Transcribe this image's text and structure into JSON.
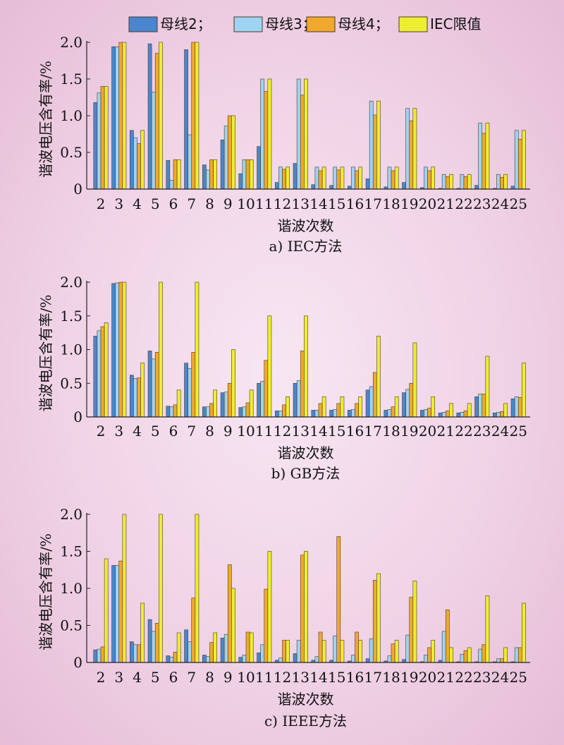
{
  "legend": [
    {
      "label": "母线2；",
      "color": "#4a86d0"
    },
    {
      "label": "母线3；",
      "color": "#9fd3f2"
    },
    {
      "label": "母线4；",
      "color": "#f0a92e"
    },
    {
      "label": "IEC限值",
      "color": "#eeee30"
    }
  ],
  "colors": {
    "bar_stroke": "#4a3a2a",
    "axis": "#222222"
  },
  "chart_data": [
    {
      "type": "bar",
      "caption": "a) IEC方法",
      "xlabel": "谐波次数",
      "ylabel": "谐波电压含有率/%",
      "ylim": [
        0,
        2.0
      ],
      "yticks": [
        "0",
        "0.5",
        "1.0",
        "1.5",
        "2.0"
      ],
      "categories": [
        "2",
        "3",
        "4",
        "5",
        "6",
        "7",
        "8",
        "9",
        "10",
        "11",
        "12",
        "13",
        "14",
        "15",
        "16",
        "17",
        "18",
        "19",
        "20",
        "21",
        "22",
        "23",
        "24",
        "25"
      ],
      "series": [
        {
          "name": "母线2",
          "values": [
            1.18,
            1.94,
            0.8,
            1.98,
            0.39,
            1.9,
            0.33,
            0.67,
            0.21,
            0.58,
            0.09,
            0.35,
            0.06,
            0.05,
            0.04,
            0.14,
            0.03,
            0.09,
            0.02,
            0.01,
            0.01,
            0.05,
            0.01,
            0.04
          ]
        },
        {
          "name": "母线3",
          "values": [
            1.31,
            1.94,
            0.7,
            1.32,
            0.12,
            0.74,
            0.26,
            0.86,
            0.4,
            1.5,
            0.3,
            1.5,
            0.3,
            0.3,
            0.3,
            1.2,
            0.3,
            1.1,
            0.3,
            0.2,
            0.2,
            0.9,
            0.2,
            0.8
          ]
        },
        {
          "name": "母线4",
          "values": [
            1.4,
            2.0,
            0.62,
            1.85,
            0.4,
            2.0,
            0.4,
            1.0,
            0.4,
            1.33,
            0.27,
            1.28,
            0.25,
            0.26,
            0.25,
            1.01,
            0.25,
            0.93,
            0.25,
            0.17,
            0.17,
            0.76,
            0.16,
            0.68
          ]
        },
        {
          "name": "IEC限值",
          "values": [
            1.4,
            2.0,
            0.8,
            2.0,
            0.4,
            2.0,
            0.4,
            1.0,
            0.4,
            1.5,
            0.3,
            1.5,
            0.3,
            0.3,
            0.3,
            1.2,
            0.3,
            1.1,
            0.3,
            0.2,
            0.2,
            0.9,
            0.2,
            0.8
          ]
        }
      ]
    },
    {
      "type": "bar",
      "caption": "b) GB方法",
      "xlabel": "谐波次数",
      "ylabel": "谐波电压含有率/%",
      "ylim": [
        0,
        2.0
      ],
      "yticks": [
        "0",
        "0.5",
        "1.0",
        "1.5",
        "2.0"
      ],
      "categories": [
        "2",
        "3",
        "4",
        "5",
        "6",
        "7",
        "8",
        "9",
        "10",
        "11",
        "12",
        "13",
        "14",
        "15",
        "16",
        "17",
        "18",
        "19",
        "20",
        "21",
        "22",
        "23",
        "24",
        "25"
      ],
      "series": [
        {
          "name": "母线2",
          "values": [
            1.2,
            1.98,
            0.62,
            0.98,
            0.16,
            0.8,
            0.15,
            0.36,
            0.14,
            0.5,
            0.09,
            0.5,
            0.1,
            0.1,
            0.1,
            0.4,
            0.1,
            0.36,
            0.1,
            0.06,
            0.06,
            0.3,
            0.06,
            0.27
          ]
        },
        {
          "name": "母线3",
          "values": [
            1.28,
            1.99,
            0.57,
            0.86,
            0.15,
            0.72,
            0.15,
            0.37,
            0.15,
            0.53,
            0.09,
            0.54,
            0.1,
            0.11,
            0.11,
            0.45,
            0.11,
            0.41,
            0.11,
            0.07,
            0.07,
            0.34,
            0.07,
            0.3
          ]
        },
        {
          "name": "母线4",
          "values": [
            1.34,
            2.0,
            0.58,
            0.96,
            0.18,
            0.96,
            0.2,
            0.5,
            0.21,
            0.84,
            0.18,
            0.98,
            0.2,
            0.2,
            0.2,
            0.66,
            0.15,
            0.5,
            0.13,
            0.09,
            0.09,
            0.34,
            0.08,
            0.29
          ]
        },
        {
          "name": "IEC限值",
          "values": [
            1.4,
            2.0,
            0.8,
            2.0,
            0.4,
            2.0,
            0.4,
            1.0,
            0.4,
            1.5,
            0.3,
            1.5,
            0.3,
            0.3,
            0.3,
            1.2,
            0.3,
            1.1,
            0.3,
            0.2,
            0.2,
            0.9,
            0.2,
            0.8
          ]
        }
      ]
    },
    {
      "type": "bar",
      "caption": "c) IEEE方法",
      "xlabel": "谐波次数",
      "ylabel": "谐波电压含有率/%",
      "ylim": [
        0,
        2.0
      ],
      "yticks": [
        "0",
        "0.5",
        "1.0",
        "1.5",
        "2.0"
      ],
      "categories": [
        "2",
        "3",
        "4",
        "5",
        "6",
        "7",
        "8",
        "9",
        "10",
        "11",
        "12",
        "13",
        "14",
        "15",
        "16",
        "17",
        "18",
        "19",
        "20",
        "21",
        "22",
        "23",
        "24",
        "25"
      ],
      "series": [
        {
          "name": "母线2",
          "values": [
            0.17,
            1.31,
            0.28,
            0.58,
            0.09,
            0.44,
            0.1,
            0.33,
            0.07,
            0.13,
            0.03,
            0.12,
            0.03,
            0.03,
            0.02,
            0.05,
            0.02,
            0.04,
            0.01,
            0.03,
            0.01,
            0.01,
            0.01,
            0.01
          ]
        },
        {
          "name": "母线3",
          "values": [
            0.18,
            1.31,
            0.24,
            0.42,
            0.07,
            0.28,
            0.08,
            0.38,
            0.1,
            0.24,
            0.06,
            0.3,
            0.08,
            0.36,
            0.1,
            0.32,
            0.09,
            0.37,
            0.1,
            0.42,
            0.11,
            0.18,
            0.05,
            0.2
          ]
        },
        {
          "name": "母线4",
          "values": [
            0.21,
            1.37,
            0.24,
            0.53,
            0.14,
            0.87,
            0.27,
            1.32,
            0.41,
            0.99,
            0.3,
            1.45,
            0.41,
            1.7,
            0.41,
            1.11,
            0.25,
            0.88,
            0.2,
            0.71,
            0.16,
            0.24,
            0.05,
            0.2
          ]
        },
        {
          "name": "IEC限值",
          "values": [
            1.4,
            2.0,
            0.8,
            2.0,
            0.4,
            2.0,
            0.4,
            1.0,
            0.4,
            1.5,
            0.3,
            1.5,
            0.3,
            0.3,
            0.3,
            1.2,
            0.3,
            1.1,
            0.3,
            0.2,
            0.2,
            0.9,
            0.2,
            0.8
          ]
        }
      ]
    }
  ]
}
